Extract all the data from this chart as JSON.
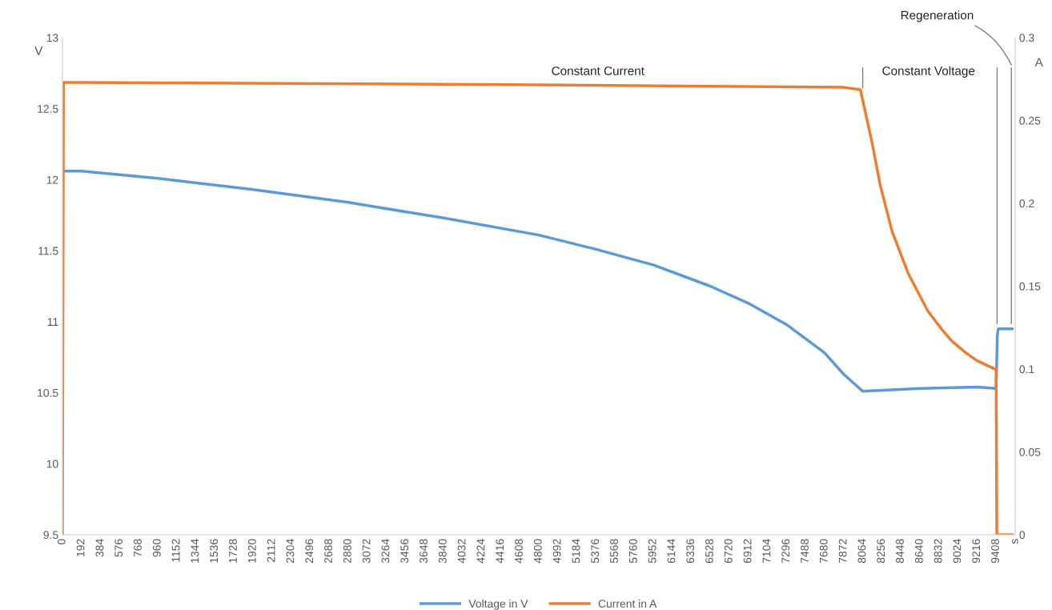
{
  "chart_data": {
    "type": "line",
    "ylabel": "V",
    "y2label": "A",
    "xlim": [
      0,
      9600
    ],
    "xticks": [
      0,
      192,
      384,
      576,
      768,
      960,
      1152,
      1344,
      1536,
      1728,
      1920,
      2112,
      2304,
      2496,
      2688,
      2880,
      3072,
      3264,
      3456,
      3648,
      3840,
      4032,
      4224,
      4416,
      4608,
      4800,
      4992,
      5184,
      5376,
      5568,
      5760,
      5952,
      6144,
      6336,
      6528,
      6720,
      6912,
      7104,
      7296,
      7488,
      7680,
      7872,
      8064,
      8256,
      8448,
      8640,
      8832,
      9024,
      9216,
      9408,
      {
        "value": 9600,
        "label": "s"
      }
    ],
    "ylim": [
      9.5,
      13
    ],
    "yticks": [
      9.5,
      10,
      10.5,
      11,
      11.5,
      12,
      12.5,
      13
    ],
    "y2lim": [
      0,
      0.3
    ],
    "y2ticks": [
      0,
      0.05,
      0.1,
      0.15,
      0.2,
      0.25,
      0.3
    ],
    "grid": false,
    "legend": "bottom",
    "series": [
      {
        "name": "Voltage in V",
        "color": "#5b9bd5",
        "x": [
          30,
          192,
          960,
          1920,
          2880,
          3840,
          4800,
          5376,
          5952,
          6528,
          6912,
          7296,
          7680,
          7872,
          8064,
          8640,
          9216,
          9408,
          9420,
          9430,
          9570
        ],
        "values": [
          12.06,
          12.06,
          12.01,
          11.93,
          11.84,
          11.73,
          11.61,
          11.51,
          11.4,
          11.25,
          11.13,
          10.98,
          10.78,
          10.63,
          10.51,
          10.53,
          10.54,
          10.53,
          10.9,
          10.95,
          10.95
        ]
      },
      {
        "name": "Current in A",
        "color": "#ed7d31",
        "axis": "y2",
        "x": [
          0,
          10,
          192,
          4800,
          7872,
          8040,
          8160,
          8240,
          8360,
          8520,
          8720,
          8860,
          8960,
          9100,
          9216,
          9408,
          9415,
          9570
        ],
        "values": [
          0,
          0.273,
          0.273,
          0.2715,
          0.27,
          0.2686,
          0.236,
          0.211,
          0.183,
          0.158,
          0.135,
          0.124,
          0.117,
          0.11,
          0.105,
          0.0997,
          0,
          0
        ]
      }
    ],
    "annotations": [
      "Constant Current",
      "Constant Voltage",
      "Regeneration"
    ]
  }
}
